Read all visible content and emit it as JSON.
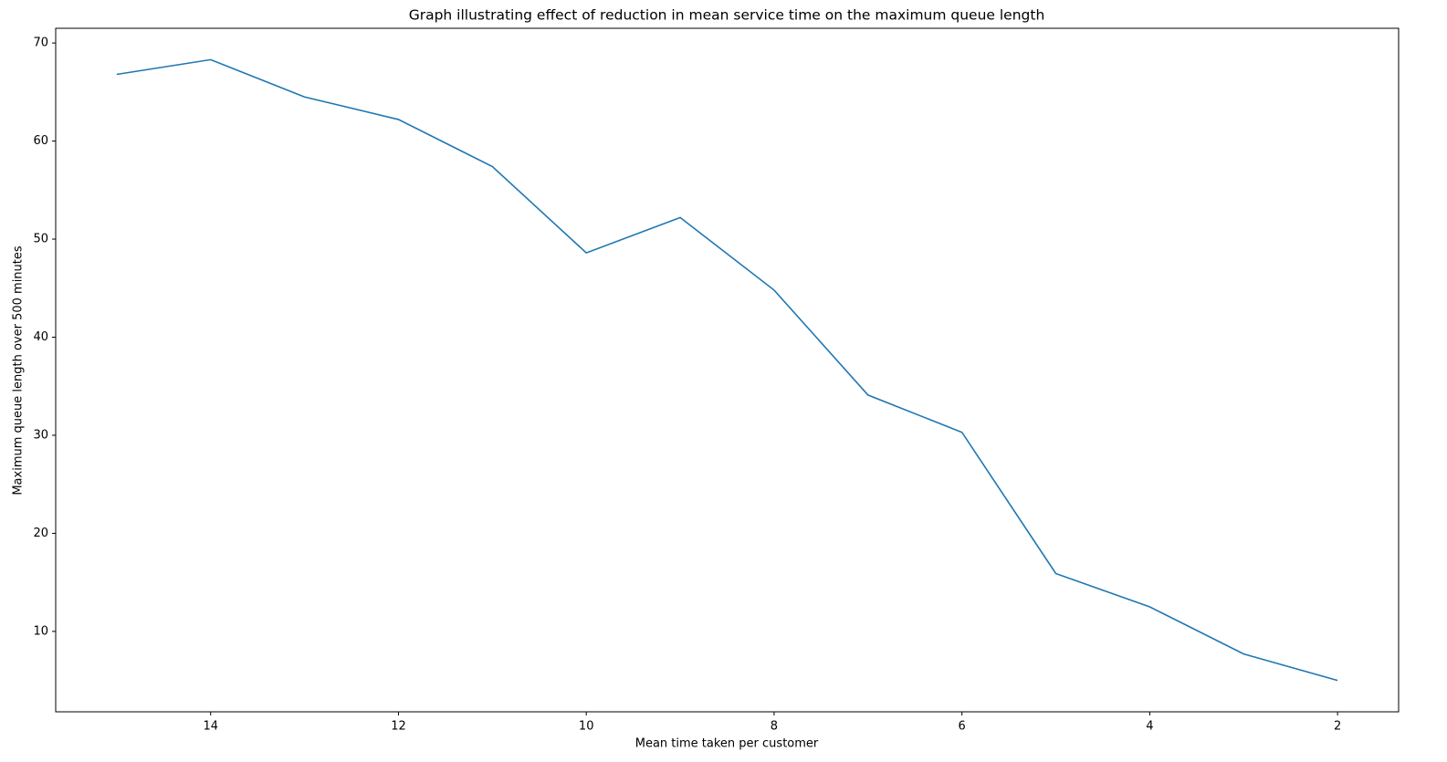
{
  "chart_data": {
    "type": "line",
    "title": "Graph illustrating effect of reduction in mean service time on the maximum queue length",
    "x_label": "Mean time taken per customer",
    "y_label": "Maximum queue length over 500 minutes",
    "x": [
      15,
      14,
      13,
      12,
      11,
      10,
      9,
      8,
      7,
      6,
      5,
      4,
      3,
      2
    ],
    "series": [
      {
        "name": "Maximum queue length",
        "color": "#1f77b4",
        "values": [
          66.8,
          68.3,
          64.5,
          62.2,
          57.4,
          48.6,
          52.2,
          44.8,
          34.1,
          30.3,
          15.9,
          12.5,
          7.7,
          5.0
        ]
      }
    ],
    "xlim": [
      15.65,
      1.35
    ],
    "xticks": [
      14,
      12,
      10,
      8,
      6,
      4,
      2
    ],
    "ylim": [
      1.8,
      71.5
    ],
    "yticks": [
      10,
      20,
      30,
      40,
      50,
      60,
      70
    ],
    "grid": false,
    "legend": false
  }
}
